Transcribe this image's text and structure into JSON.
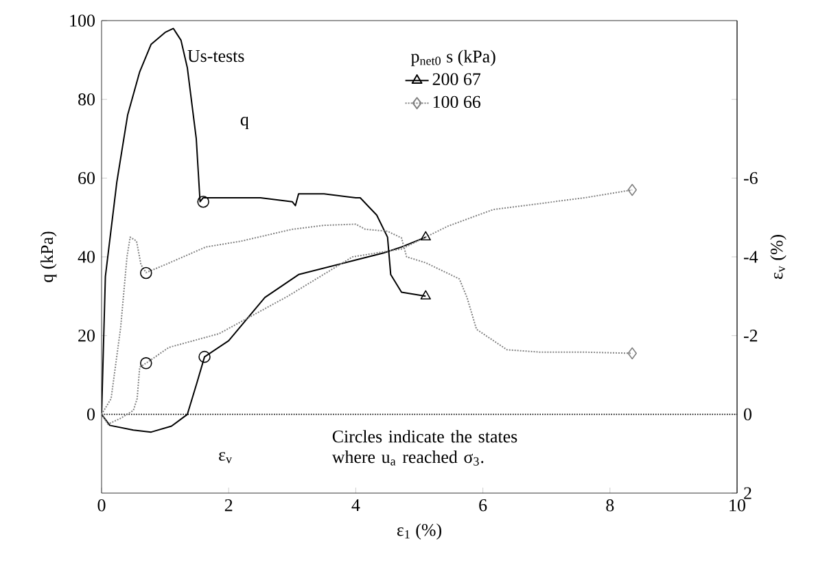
{
  "chart_data": {
    "type": "line",
    "xlabel": "ε$_{1}$ (%)",
    "ylabel": "q (kPa)",
    "y2label": "ε$_{v}$ (%)",
    "legend_title": "p$_{net0}$  s (kPa)",
    "legend": "top right",
    "grid": false,
    "xlim": [
      0,
      10
    ],
    "xticks": [
      0,
      2,
      4,
      6,
      8,
      10
    ],
    "ylim": [
      -20,
      100
    ],
    "yticks": [
      0,
      20,
      40,
      60,
      80,
      100
    ],
    "y2lim": [
      2,
      -10
    ],
    "y2ticks": [
      {
        "value": -8,
        "label": null
      },
      -6,
      -4,
      -2,
      0,
      2
    ],
    "annotations": [
      "Us-tests",
      "q",
      "ε$_{v}$",
      "Circles indicate the states where u$_{a}$ reached σ$_{3}$."
    ],
    "ref_lines": [
      {
        "axis": "y2",
        "value": 0,
        "color": "#000000",
        "line_style": "dotted"
      }
    ],
    "series": [
      {
        "name": "200 67",
        "color": "#000000",
        "line_style": "solid",
        "x": [
          0,
          0.06,
          0.24,
          0.41,
          0.6,
          0.78,
          1.0,
          1.13,
          1.25,
          1.35,
          1.49,
          1.55,
          1.6,
          1.8,
          2.5,
          3.0,
          3.05,
          3.1,
          3.5,
          4.0,
          4.07,
          4.33,
          4.5,
          4.55,
          4.72,
          5.1
        ],
        "values": [
          0,
          35,
          59,
          76,
          87,
          94,
          97,
          98,
          95,
          88,
          70,
          54,
          55,
          55,
          55,
          54,
          53,
          56,
          56,
          55,
          55,
          50.6,
          45,
          35.5,
          31,
          30
        ]
      },
      {
        "name": "100 66",
        "color": "#808080",
        "line_style": "dotted",
        "x": [
          0,
          0.15,
          0.3,
          0.4,
          0.45,
          0.55,
          0.62,
          0.7,
          1.0,
          1.64,
          2.2,
          3.0,
          3.5,
          4.0,
          4.15,
          4.5,
          4.72,
          4.8,
          5.1,
          5.63,
          5.75,
          5.9,
          6.38,
          6.9,
          7.6,
          8.35
        ],
        "values": [
          0,
          4,
          22,
          40,
          45,
          44,
          38,
          36,
          38,
          42.5,
          44,
          47,
          48,
          48.3,
          47,
          46.5,
          44.8,
          40,
          38.5,
          34.4,
          29.7,
          21.6,
          16.4,
          15.8,
          15.8,
          15.5
        ]
      },
      {
        "axis": "y2",
        "color": "#000000",
        "line_style": "solid",
        "x": [
          0,
          0.13,
          0.5,
          0.78,
          1.1,
          1.35,
          1.5,
          1.62,
          2.0,
          2.57,
          3.1,
          3.95,
          4.44,
          4.72,
          5.1
        ],
        "values": [
          0,
          0.28,
          0.4,
          0.45,
          0.3,
          0,
          -0.8,
          -1.46,
          -1.87,
          -2.97,
          -3.55,
          -3.9,
          -4.1,
          -4.25,
          -4.5
        ]
      },
      {
        "axis": "y2",
        "color": "#808080",
        "line_style": "dotted",
        "x": [
          0,
          0.1,
          0.3,
          0.5,
          0.56,
          0.6,
          0.7,
          1.06,
          1.85,
          2.93,
          3.95,
          4.72,
          5.45,
          6.16,
          7.6,
          8.35
        ],
        "values": [
          0,
          0.25,
          0.1,
          -0.1,
          -0.4,
          -1.2,
          -1.3,
          -1.7,
          -2.05,
          -3.0,
          -4.0,
          -4.2,
          -4.78,
          -5.2,
          -5.5,
          -5.7
        ]
      },
      {
        "type": "scatter",
        "color": "#000000",
        "marker": "triangle",
        "x": [
          5.1
        ],
        "values": [
          30
        ]
      },
      {
        "type": "scatter",
        "axis": "y2",
        "color": "#000000",
        "marker": "triangle",
        "x": [
          5.1
        ],
        "values": [
          -4.5
        ]
      },
      {
        "type": "scatter",
        "color": "#808080",
        "marker": "diamond",
        "x": [
          8.35
        ],
        "values": [
          15.5
        ]
      },
      {
        "type": "scatter",
        "axis": "y2",
        "color": "#808080",
        "marker": "diamond",
        "x": [
          8.35
        ],
        "values": [
          -5.7
        ]
      },
      {
        "type": "scatter",
        "color": "#000000",
        "marker": "circle",
        "x": [
          0.7,
          1.6
        ],
        "values": [
          35.9,
          54
        ]
      },
      {
        "type": "scatter",
        "axis": "y2",
        "color": "#000000",
        "marker": "circle",
        "x": [
          0.7,
          1.62
        ],
        "values": [
          -1.3,
          -1.46
        ]
      }
    ]
  }
}
